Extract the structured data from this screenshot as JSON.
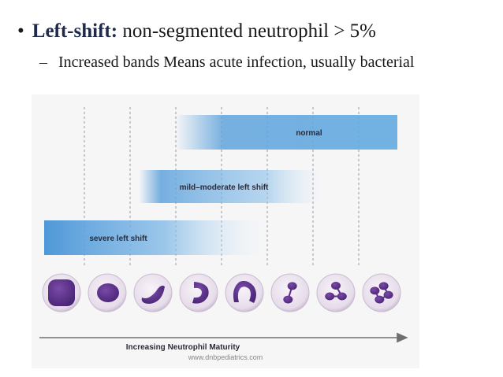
{
  "slide": {
    "bullet": {
      "marker": "•",
      "term": "Left-shift:",
      "text": " non-segmented neutrophil > 5%"
    },
    "sub_bullet": {
      "marker": "–",
      "text": "Increased bands Means acute infection, usually bacterial"
    }
  },
  "figure": {
    "bands": [
      {
        "label": "normal"
      },
      {
        "label": "mild–moderate left shift"
      },
      {
        "label": "severe left shift"
      }
    ],
    "cells": [
      {
        "name": "myeloblast-cell"
      },
      {
        "name": "promyelocyte-cell"
      },
      {
        "name": "myelocyte-cell"
      },
      {
        "name": "metamyelocyte-cell"
      },
      {
        "name": "band-cell"
      },
      {
        "name": "segmented-2-lobe-cell"
      },
      {
        "name": "segmented-3-lobe-cell"
      },
      {
        "name": "segmented-4-lobe-cell"
      }
    ],
    "axis_label": "Increasing Neutrophil Maturity",
    "colors": {
      "band": "#5fa3dc",
      "cytoplasm": "#ebe4ee",
      "nucleus": "#5a2f8a",
      "arrow": "#6f6f6f"
    }
  },
  "watermark": "www.dnbpediatrics.com"
}
